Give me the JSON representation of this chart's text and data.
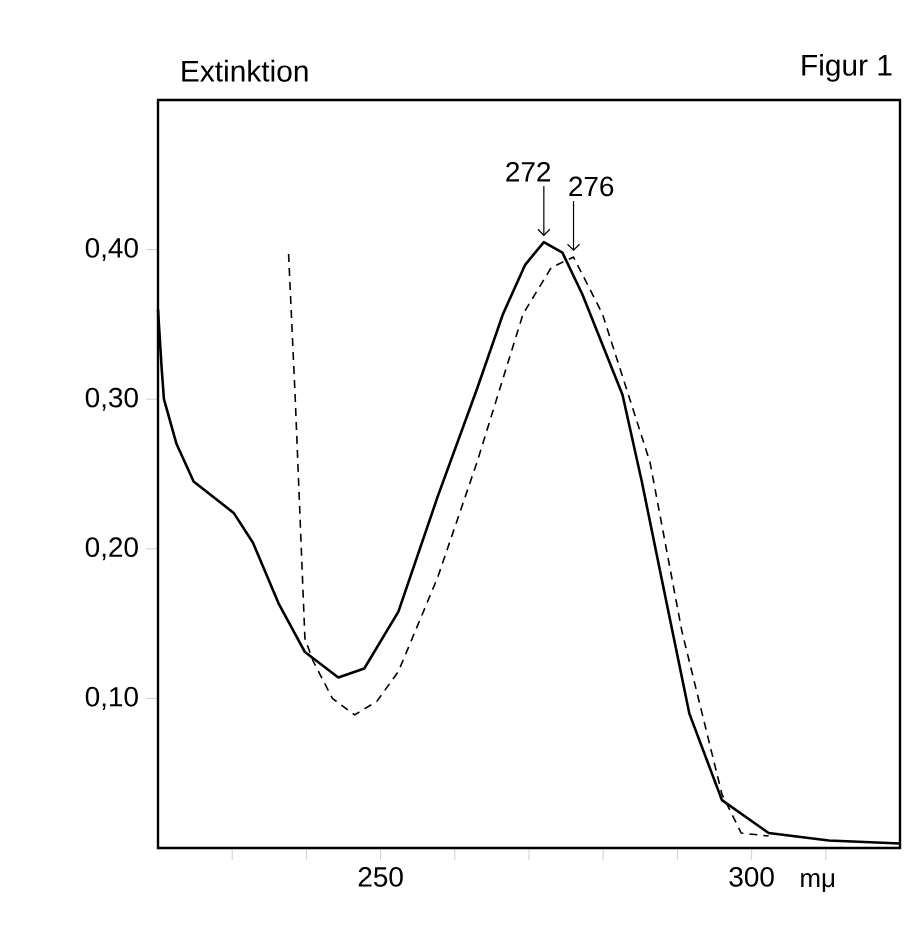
{
  "chart_data": {
    "type": "line",
    "title": "Figur 1",
    "ylabel": "Extinktion",
    "xlabel": "mμ",
    "xlim": [
      220,
      320
    ],
    "ylim": [
      0,
      0.5
    ],
    "xticks": [
      {
        "value": 230,
        "label": null
      },
      {
        "value": 240,
        "label": null
      },
      250,
      {
        "value": 260,
        "label": null
      },
      {
        "value": 270,
        "label": null
      },
      {
        "value": 280,
        "label": null
      },
      {
        "value": 290,
        "label": null
      },
      300,
      {
        "value": 310,
        "label": null
      }
    ],
    "yticks": [
      {
        "value": 0.1,
        "label": "0,10"
      },
      {
        "value": 0.2,
        "label": "0,20"
      },
      {
        "value": 0.3,
        "label": "0,30"
      },
      {
        "value": 0.4,
        "label": "0,40"
      }
    ],
    "grid": false,
    "marker": "none",
    "series": [
      {
        "color": "#000000",
        "line_style": "solid",
        "x": [
          220,
          220.5,
          220.8,
          222.5,
          224.8,
          230.2,
          232.8,
          236.3,
          239.8,
          244.3,
          247.8,
          252.4,
          257.7,
          263,
          266.5,
          269.5,
          272,
          274.5,
          277.2,
          282.6,
          285.2,
          288,
          291.6,
          296,
          302.3,
          310.4,
          320
        ],
        "values": [
          0.36,
          0.32,
          0.3,
          0.27,
          0.245,
          0.224,
          0.204,
          0.163,
          0.131,
          0.114,
          0.12,
          0.158,
          0.235,
          0.307,
          0.357,
          0.39,
          0.405,
          0.398,
          0.37,
          0.303,
          0.245,
          0.177,
          0.09,
          0.032,
          0.01,
          0.005,
          0.003
        ]
      },
      {
        "color": "#000000",
        "line_style": "dashed",
        "x": [
          237.6,
          238.5,
          239.8,
          240.9,
          243.5,
          246.5,
          249.5,
          252.4,
          257.7,
          263,
          269.2,
          273,
          276,
          279.9,
          286.3,
          290.6,
          296,
          298.6,
          302.3
        ],
        "values": [
          0.397,
          0.3,
          0.14,
          0.125,
          0.1,
          0.089,
          0.098,
          0.118,
          0.181,
          0.258,
          0.357,
          0.388,
          0.395,
          0.357,
          0.258,
          0.145,
          0.036,
          0.01,
          0.008
        ]
      }
    ],
    "annotations": [
      {
        "text": "272",
        "x": 272,
        "y": 0.405
      },
      {
        "text": "276",
        "x": 276,
        "y": 0.395
      }
    ]
  }
}
